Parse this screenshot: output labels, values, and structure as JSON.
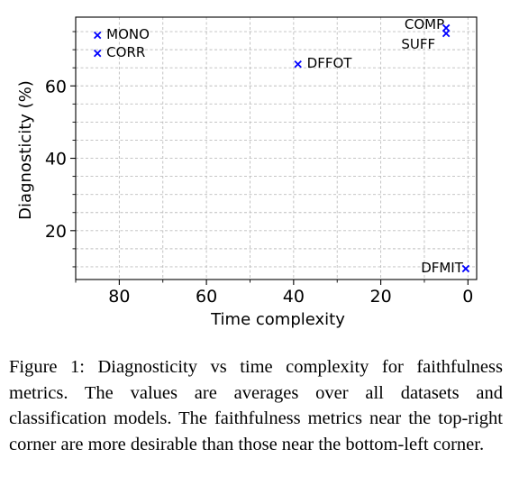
{
  "chart_data": {
    "type": "scatter",
    "xlabel": "Time complexity",
    "ylabel": "Diagnosticity (%)",
    "x_axis_reversed": true,
    "xlim": [
      90,
      -2
    ],
    "ylim": [
      6.5,
      79
    ],
    "xticks": [
      80,
      60,
      40,
      20,
      0
    ],
    "yticks": [
      20,
      40,
      60
    ],
    "grid": "dashed, major and minor",
    "marker": "x",
    "marker_color": "#0000ff",
    "points": [
      {
        "label": "MONO",
        "x": 85,
        "y": 74
      },
      {
        "label": "CORR",
        "x": 85,
        "y": 69
      },
      {
        "label": "DFFOT",
        "x": 39,
        "y": 66
      },
      {
        "label": "COMP",
        "x": 5,
        "y": 76
      },
      {
        "label": "SUFF",
        "x": 5,
        "y": 74.5
      },
      {
        "label": "DFMIT",
        "x": 0.5,
        "y": 9.5
      }
    ]
  },
  "caption": "Figure 1: Diagnosticity vs time complexity for faithfulness metrics. The values are averages over all datasets and classification models. The faithfulness metrics near the top-right corner are more desirable than those near the bottom-left corner."
}
